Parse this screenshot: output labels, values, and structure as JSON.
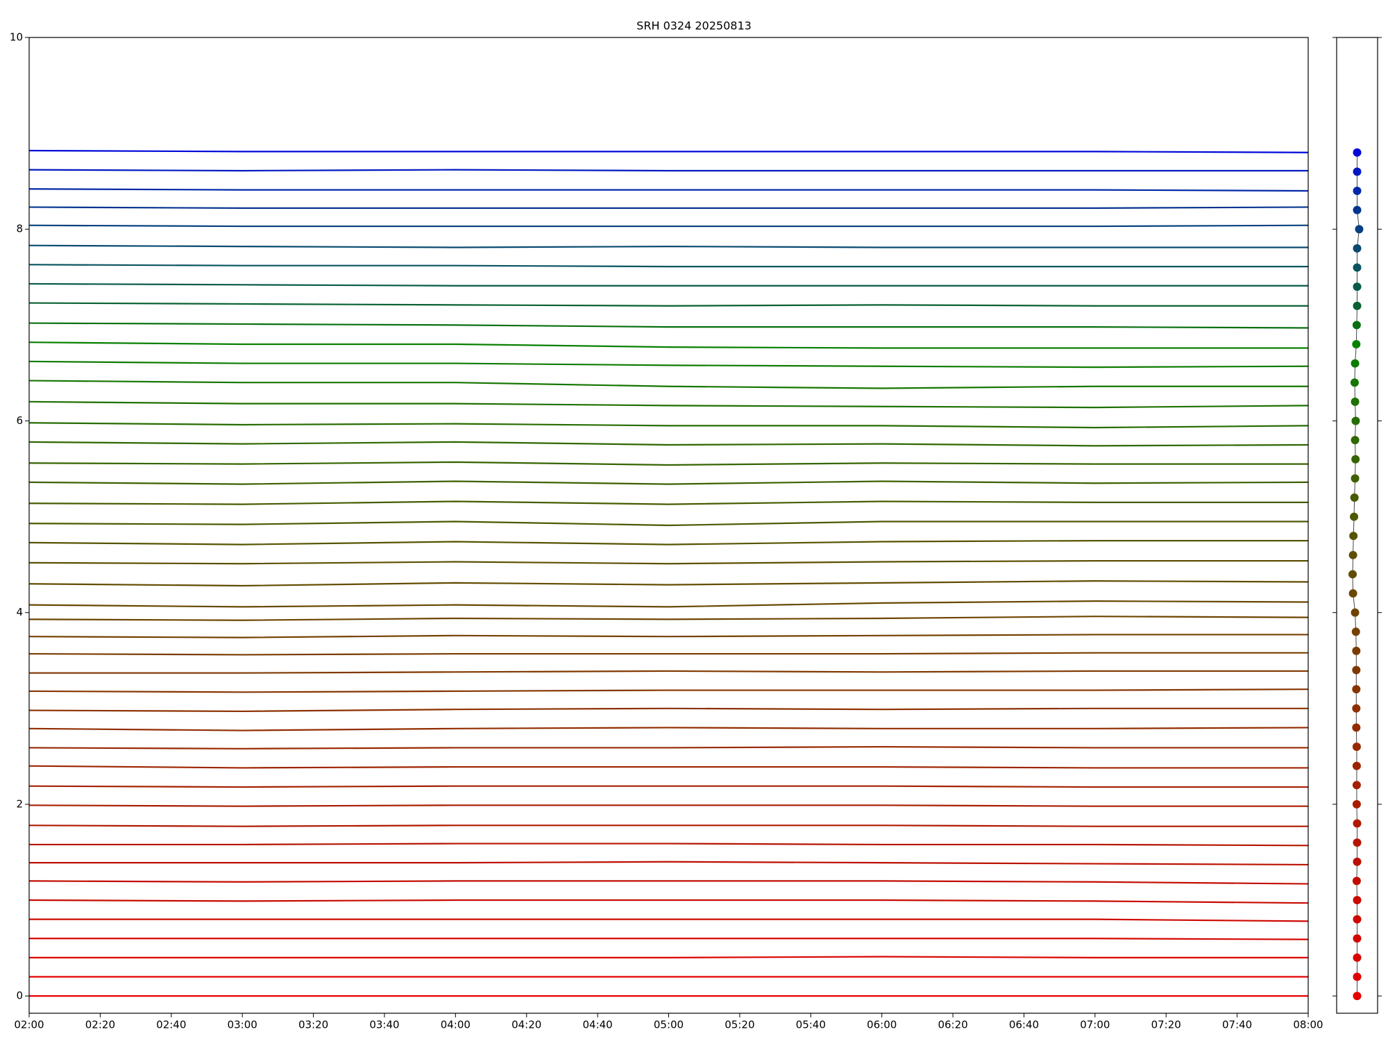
{
  "chart_data": [
    {
      "type": "line",
      "title": "SRH 0324 20250813",
      "x": [
        "02:00",
        "03:00",
        "04:00",
        "05:00",
        "06:00",
        "07:00",
        "08:00"
      ],
      "xlim": [
        "02:00",
        "08:00"
      ],
      "xticks": [
        "02:00",
        "02:20",
        "02:40",
        "03:00",
        "03:20",
        "03:40",
        "04:00",
        "04:20",
        "04:40",
        "05:00",
        "05:20",
        "05:40",
        "06:00",
        "06:20",
        "06:40",
        "07:00",
        "07:20",
        "07:40",
        "08:00"
      ],
      "ylim": [
        -0.18,
        10
      ],
      "yticks": [
        0,
        2,
        4,
        6,
        8,
        10
      ],
      "series": [
        {
          "color": "#e60000",
          "values": [
            0,
            0,
            0,
            0,
            0,
            0,
            0
          ]
        },
        {
          "color": "#e00200",
          "values": [
            0.2,
            0.2,
            0.2,
            0.2,
            0.2,
            0.2,
            0.2
          ]
        },
        {
          "color": "#da0400",
          "values": [
            0.4,
            0.4,
            0.4,
            0.4,
            0.41,
            0.4,
            0.4
          ]
        },
        {
          "color": "#d40600",
          "values": [
            0.6,
            0.6,
            0.6,
            0.6,
            0.6,
            0.6,
            0.59
          ]
        },
        {
          "color": "#ce0800",
          "values": [
            0.8,
            0.8,
            0.8,
            0.8,
            0.8,
            0.8,
            0.78
          ]
        },
        {
          "color": "#c80a00",
          "values": [
            1.0,
            0.99,
            1.0,
            1.0,
            1.0,
            0.99,
            0.97
          ]
        },
        {
          "color": "#c20c00",
          "values": [
            1.2,
            1.19,
            1.2,
            1.2,
            1.2,
            1.19,
            1.17
          ]
        },
        {
          "color": "#bc1000",
          "values": [
            1.39,
            1.39,
            1.39,
            1.4,
            1.39,
            1.38,
            1.37
          ]
        },
        {
          "color": "#b61400",
          "values": [
            1.58,
            1.58,
            1.59,
            1.59,
            1.58,
            1.58,
            1.57
          ]
        },
        {
          "color": "#b01800",
          "values": [
            1.78,
            1.77,
            1.78,
            1.78,
            1.78,
            1.77,
            1.77
          ]
        },
        {
          "color": "#aa1c00",
          "values": [
            1.99,
            1.98,
            1.99,
            1.99,
            1.99,
            1.98,
            1.98
          ]
        },
        {
          "color": "#a42000",
          "values": [
            2.19,
            2.18,
            2.19,
            2.19,
            2.19,
            2.18,
            2.18
          ]
        },
        {
          "color": "#9e2400",
          "values": [
            2.4,
            2.38,
            2.39,
            2.39,
            2.39,
            2.38,
            2.38
          ]
        },
        {
          "color": "#982800",
          "values": [
            2.59,
            2.58,
            2.59,
            2.59,
            2.6,
            2.59,
            2.59
          ]
        },
        {
          "color": "#922c00",
          "values": [
            2.79,
            2.77,
            2.79,
            2.8,
            2.79,
            2.79,
            2.8
          ]
        },
        {
          "color": "#8c3000",
          "values": [
            2.98,
            2.97,
            2.99,
            3.0,
            2.99,
            3.0,
            3.0
          ]
        },
        {
          "color": "#863400",
          "values": [
            3.18,
            3.17,
            3.18,
            3.19,
            3.19,
            3.19,
            3.2
          ]
        },
        {
          "color": "#803800",
          "values": [
            3.37,
            3.37,
            3.38,
            3.39,
            3.38,
            3.39,
            3.39
          ]
        },
        {
          "color": "#7a3c00",
          "values": [
            3.57,
            3.56,
            3.57,
            3.57,
            3.57,
            3.58,
            3.58
          ]
        },
        {
          "color": "#744000",
          "values": [
            3.75,
            3.74,
            3.76,
            3.75,
            3.76,
            3.77,
            3.77
          ]
        },
        {
          "color": "#6e4400",
          "values": [
            3.93,
            3.92,
            3.94,
            3.93,
            3.94,
            3.96,
            3.95
          ]
        },
        {
          "color": "#684800",
          "values": [
            4.08,
            4.06,
            4.08,
            4.06,
            4.1,
            4.12,
            4.11
          ]
        },
        {
          "color": "#624c00",
          "values": [
            4.3,
            4.28,
            4.31,
            4.29,
            4.31,
            4.33,
            4.32
          ]
        },
        {
          "color": "#5c5000",
          "values": [
            4.52,
            4.51,
            4.53,
            4.51,
            4.53,
            4.54,
            4.54
          ]
        },
        {
          "color": "#565400",
          "values": [
            4.73,
            4.71,
            4.74,
            4.71,
            4.74,
            4.75,
            4.75
          ]
        },
        {
          "color": "#4e5800",
          "values": [
            4.93,
            4.92,
            4.95,
            4.91,
            4.95,
            4.95,
            4.95
          ]
        },
        {
          "color": "#465c00",
          "values": [
            5.14,
            5.13,
            5.16,
            5.13,
            5.16,
            5.15,
            5.15
          ]
        },
        {
          "color": "#3e6000",
          "values": [
            5.36,
            5.34,
            5.37,
            5.34,
            5.37,
            5.35,
            5.36
          ]
        },
        {
          "color": "#366400",
          "values": [
            5.56,
            5.55,
            5.57,
            5.54,
            5.56,
            5.55,
            5.55
          ]
        },
        {
          "color": "#2e6800",
          "values": [
            5.78,
            5.76,
            5.78,
            5.75,
            5.76,
            5.74,
            5.75
          ]
        },
        {
          "color": "#266c00",
          "values": [
            5.98,
            5.96,
            5.97,
            5.95,
            5.95,
            5.93,
            5.95
          ]
        },
        {
          "color": "#1e7000",
          "values": [
            6.2,
            6.18,
            6.18,
            6.16,
            6.15,
            6.14,
            6.16
          ]
        },
        {
          "color": "#167600",
          "values": [
            6.42,
            6.4,
            6.4,
            6.36,
            6.34,
            6.36,
            6.36
          ]
        },
        {
          "color": "#0e7c00",
          "values": [
            6.62,
            6.6,
            6.6,
            6.58,
            6.57,
            6.56,
            6.57
          ]
        },
        {
          "color": "#088000",
          "values": [
            6.82,
            6.8,
            6.8,
            6.77,
            6.76,
            6.76,
            6.76
          ]
        },
        {
          "color": "#087010",
          "values": [
            7.02,
            7.01,
            7.0,
            6.98,
            6.98,
            6.98,
            6.97
          ]
        },
        {
          "color": "#086030",
          "values": [
            7.23,
            7.22,
            7.21,
            7.2,
            7.21,
            7.2,
            7.2
          ]
        },
        {
          "color": "#085a48",
          "values": [
            7.43,
            7.42,
            7.41,
            7.41,
            7.41,
            7.41,
            7.41
          ]
        },
        {
          "color": "#085460",
          "values": [
            7.63,
            7.62,
            7.62,
            7.61,
            7.61,
            7.61,
            7.61
          ]
        },
        {
          "color": "#084a70",
          "values": [
            7.83,
            7.82,
            7.81,
            7.82,
            7.81,
            7.81,
            7.81
          ]
        },
        {
          "color": "#064080",
          "values": [
            8.04,
            8.03,
            8.03,
            8.03,
            8.03,
            8.03,
            8.04
          ]
        },
        {
          "color": "#043490",
          "values": [
            8.23,
            8.22,
            8.22,
            8.22,
            8.22,
            8.22,
            8.23
          ]
        },
        {
          "color": "#0228a8",
          "values": [
            8.42,
            8.41,
            8.41,
            8.41,
            8.41,
            8.41,
            8.4
          ]
        },
        {
          "color": "#0118c0",
          "values": [
            8.62,
            8.61,
            8.62,
            8.61,
            8.61,
            8.61,
            8.61
          ]
        },
        {
          "color": "#0008d8",
          "values": [
            8.82,
            8.81,
            8.81,
            8.81,
            8.81,
            8.81,
            8.8
          ]
        }
      ]
    },
    {
      "type": "scatter",
      "xlim": [
        -1,
        1
      ],
      "ylim": [
        -0.18,
        10
      ],
      "yticks": [
        0,
        2,
        4,
        6,
        8,
        10
      ],
      "x": [
        0,
        0,
        0,
        0,
        0,
        0,
        -0.02,
        0,
        0,
        0,
        -0.02,
        -0.02,
        -0.02,
        -0.02,
        -0.04,
        -0.04,
        -0.04,
        -0.04,
        -0.04,
        -0.06,
        -0.1,
        -0.2,
        -0.22,
        -0.2,
        -0.18,
        -0.15,
        -0.13,
        -0.1,
        -0.08,
        -0.1,
        -0.07,
        -0.1,
        -0.12,
        -0.1,
        -0.04,
        -0.02,
        0,
        0,
        0,
        0,
        0.1,
        0,
        0,
        0,
        0
      ],
      "y": [
        0,
        0.2,
        0.4,
        0.6,
        0.8,
        1.0,
        1.2,
        1.4,
        1.6,
        1.8,
        2.0,
        2.2,
        2.4,
        2.6,
        2.8,
        3.0,
        3.2,
        3.4,
        3.6,
        3.8,
        4.0,
        4.2,
        4.4,
        4.6,
        4.8,
        5.0,
        5.2,
        5.4,
        5.6,
        5.8,
        6.0,
        6.2,
        6.4,
        6.6,
        6.8,
        7.0,
        7.2,
        7.4,
        7.6,
        7.8,
        8.0,
        8.2,
        8.4,
        8.6,
        8.8
      ]
    }
  ]
}
